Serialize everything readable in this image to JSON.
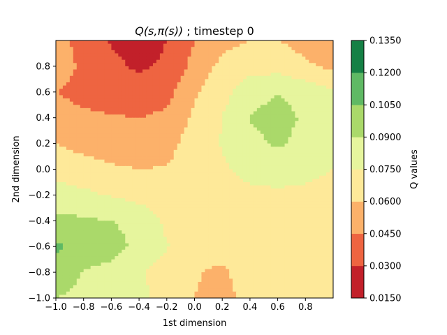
{
  "chart_data": {
    "type": "heatmap",
    "title": {
      "math": "Q(s,π(s))",
      "suffix": " ; timestep 0"
    },
    "xlabel": "1st dimension",
    "ylabel": "2nd dimension",
    "xlim": [
      -1.0,
      1.0
    ],
    "ylim": [
      -1.0,
      1.0
    ],
    "x_ticks": [
      "−1.0",
      "−0.8",
      "−0.6",
      "−0.4",
      "−0.2",
      "0.0",
      "0.2",
      "0.4",
      "0.6",
      "0.8"
    ],
    "x_tick_values": [
      -1.0,
      -0.8,
      -0.6,
      -0.4,
      -0.2,
      0.0,
      0.2,
      0.4,
      0.6,
      0.8
    ],
    "y_ticks": [
      "−1.0",
      "−0.8",
      "−0.6",
      "−0.4",
      "−0.2",
      "0.0",
      "0.2",
      "0.4",
      "0.6",
      "0.8"
    ],
    "y_tick_values": [
      -1.0,
      -0.8,
      -0.6,
      -0.4,
      -0.2,
      0.0,
      0.2,
      0.4,
      0.6,
      0.8
    ],
    "colorbar": {
      "label": "Q values",
      "levels": [
        0.015,
        0.03,
        0.045,
        0.06,
        0.075,
        0.09,
        0.105,
        0.12,
        0.135
      ],
      "tick_labels": [
        "0.0150",
        "0.0300",
        "0.0450",
        "0.0600",
        "0.0750",
        "0.0900",
        "0.1050",
        "0.1200",
        "0.1350"
      ],
      "colors": [
        "#c2202a",
        "#ee6441",
        "#fcb16a",
        "#fee999",
        "#e6f59d",
        "#aad96a",
        "#5fb964",
        "#158045"
      ]
    },
    "grid": false,
    "grid_x": [
      -1.0,
      -0.8,
      -0.6,
      -0.4,
      -0.2,
      0.0,
      0.2,
      0.4,
      0.6,
      0.8,
      1.0
    ],
    "grid_y": [
      1.0,
      0.8,
      0.6,
      0.4,
      0.2,
      0.0,
      -0.2,
      -0.4,
      -0.6,
      -0.8,
      -1.0
    ],
    "z": [
      [
        0.05,
        0.04,
        0.029,
        0.024,
        0.03,
        0.045,
        0.056,
        0.06,
        0.06,
        0.055,
        0.05
      ],
      [
        0.055,
        0.041,
        0.033,
        0.028,
        0.032,
        0.05,
        0.064,
        0.069,
        0.069,
        0.062,
        0.057
      ],
      [
        0.045,
        0.04,
        0.038,
        0.035,
        0.04,
        0.058,
        0.07,
        0.084,
        0.09,
        0.085,
        0.076
      ],
      [
        0.052,
        0.048,
        0.046,
        0.045,
        0.048,
        0.063,
        0.075,
        0.091,
        0.095,
        0.088,
        0.078
      ],
      [
        0.06,
        0.055,
        0.052,
        0.052,
        0.055,
        0.067,
        0.076,
        0.086,
        0.092,
        0.086,
        0.077
      ],
      [
        0.07,
        0.066,
        0.062,
        0.06,
        0.061,
        0.067,
        0.073,
        0.08,
        0.083,
        0.08,
        0.075
      ],
      [
        0.081,
        0.078,
        0.074,
        0.07,
        0.067,
        0.066,
        0.068,
        0.071,
        0.072,
        0.071,
        0.069
      ],
      [
        0.094,
        0.092,
        0.09,
        0.085,
        0.072,
        0.065,
        0.067,
        0.07,
        0.072,
        0.071,
        0.069
      ],
      [
        0.108,
        0.1,
        0.097,
        0.085,
        0.076,
        0.064,
        0.064,
        0.07,
        0.074,
        0.073,
        0.07
      ],
      [
        0.1,
        0.089,
        0.085,
        0.077,
        0.068,
        0.061,
        0.058,
        0.066,
        0.072,
        0.073,
        0.071
      ],
      [
        0.09,
        0.086,
        0.085,
        0.08,
        0.067,
        0.06,
        0.055,
        0.065,
        0.071,
        0.072,
        0.07
      ]
    ]
  }
}
